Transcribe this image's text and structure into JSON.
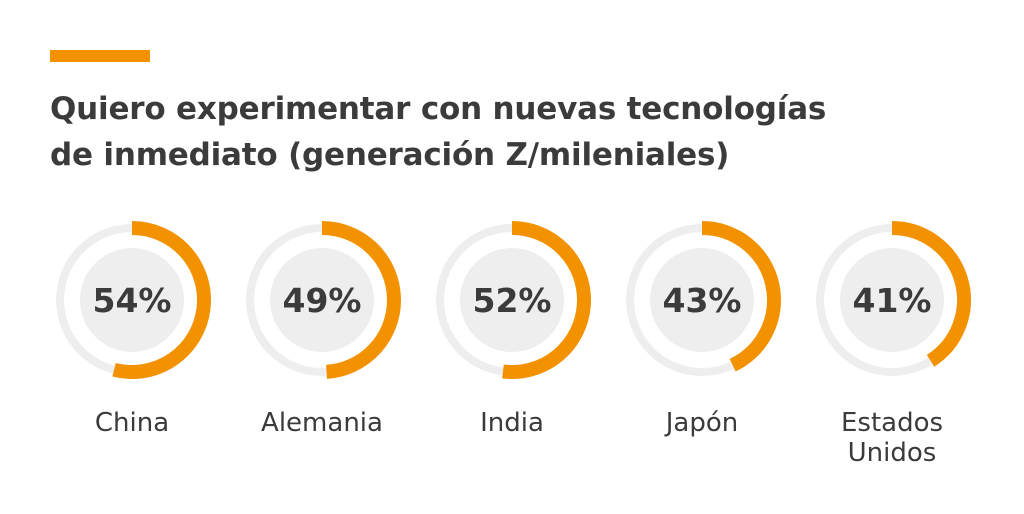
{
  "header": {
    "title_line1": "Quiero experimentar con nuevas tecnologías",
    "title_line2": "de inmediato (generación Z/mileniales)"
  },
  "colors": {
    "accent": "#f39200",
    "track": "#eeeeee",
    "inner": "#eeeeee",
    "text": "#3b3b3b"
  },
  "chart_data": {
    "type": "pie",
    "title": "Quiero experimentar con nuevas tecnologías de inmediato (generación Z/mileniales)",
    "unit": "%",
    "categories": [
      "China",
      "Alemania",
      "India",
      "Japón",
      "Estados Unidos"
    ],
    "values": [
      54,
      49,
      52,
      43,
      41
    ],
    "labels": [
      "54%",
      "49%",
      "52%",
      "43%",
      "41%"
    ],
    "category_lines": [
      [
        "China"
      ],
      [
        "Alemania"
      ],
      [
        "India"
      ],
      [
        "Japón"
      ],
      [
        "Estados",
        "Unidos"
      ]
    ]
  }
}
